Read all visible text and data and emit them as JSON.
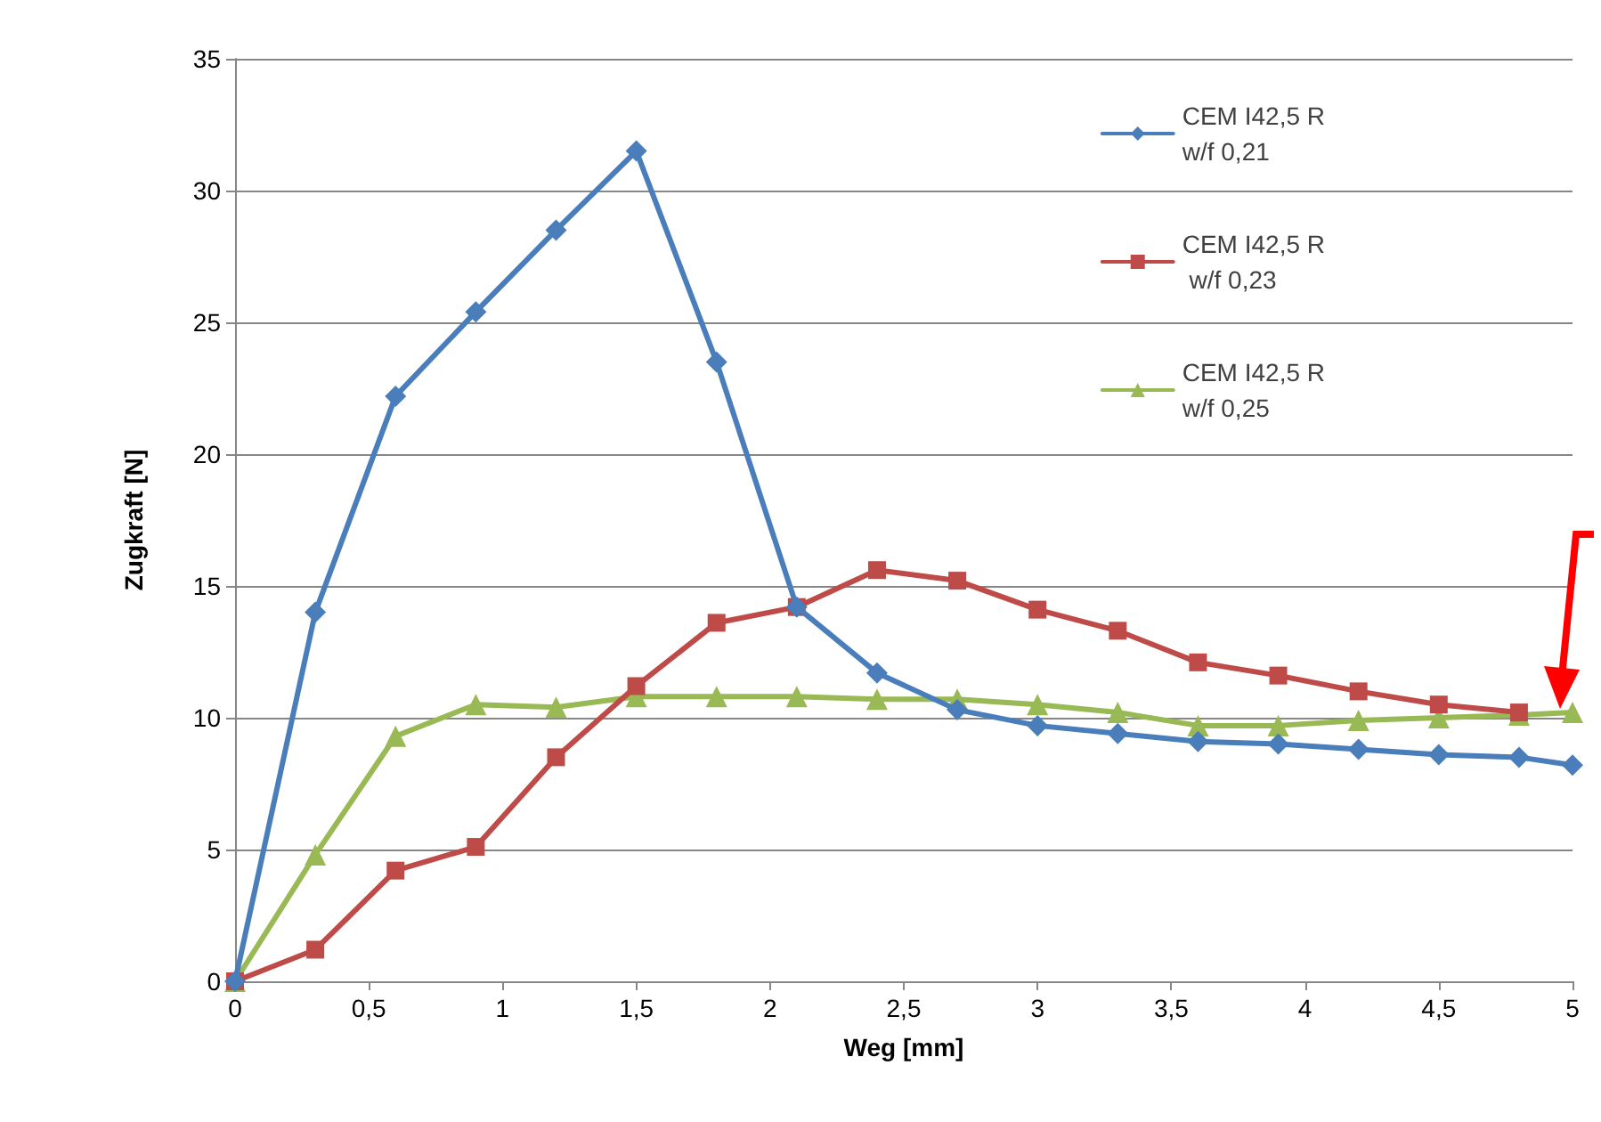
{
  "chart_data": {
    "type": "line",
    "xlabel": "Weg [mm]",
    "ylabel": "Zugkraft [N]",
    "xlim": [
      0,
      5
    ],
    "xticks": [
      0,
      {
        "value": 0.5,
        "label": "0,5"
      },
      1,
      {
        "value": 1.5,
        "label": "1,5"
      },
      2,
      {
        "value": 2.5,
        "label": "2,5"
      },
      3,
      {
        "value": 3.5,
        "label": "3,5"
      },
      4,
      {
        "value": 4.5,
        "label": "4,5"
      },
      5
    ],
    "ylim": [
      0,
      35
    ],
    "yticks": [
      0,
      5,
      10,
      15,
      20,
      25,
      30,
      35
    ],
    "grid": "y",
    "legend": "top right",
    "line_style": "solid",
    "series": [
      {
        "name": "CEM I42,5 R\nw/f 0,21",
        "color": "#4a7ebb",
        "marker": "diamond",
        "x": [
          0,
          0.3,
          0.6,
          0.9,
          1.2,
          1.5,
          1.8,
          2.1,
          2.4,
          2.7,
          3.0,
          3.3,
          3.6,
          3.9,
          4.2,
          4.5,
          4.8,
          5.0
        ],
        "values": [
          0,
          14.0,
          22.2,
          25.4,
          28.5,
          31.5,
          23.5,
          14.2,
          11.7,
          10.3,
          9.7,
          9.4,
          9.1,
          9.0,
          8.8,
          8.6,
          8.5,
          8.2
        ]
      },
      {
        "name": "CEM I42,5 R\n w/f 0,23",
        "color": "#be4b48",
        "marker": "square",
        "x": [
          0,
          0.3,
          0.6,
          0.9,
          1.2,
          1.5,
          1.8,
          2.1,
          2.4,
          2.7,
          3.0,
          3.3,
          3.6,
          3.9,
          4.2,
          4.5,
          4.8
        ],
        "values": [
          0,
          1.2,
          4.2,
          5.1,
          8.5,
          11.2,
          13.6,
          14.2,
          15.6,
          15.2,
          14.1,
          13.3,
          12.1,
          11.6,
          11.0,
          10.5,
          10.2
        ]
      },
      {
        "name": "CEM I42,5 R\nw/f 0,25",
        "color": "#98b954",
        "marker": "triangle",
        "x": [
          0,
          0.3,
          0.6,
          0.9,
          1.2,
          1.5,
          1.8,
          2.1,
          2.4,
          2.7,
          3.0,
          3.3,
          3.6,
          3.9,
          4.2,
          4.5,
          4.8,
          5.0
        ],
        "values": [
          0,
          4.8,
          9.3,
          10.5,
          10.4,
          10.8,
          10.8,
          10.8,
          10.7,
          10.7,
          10.5,
          10.2,
          9.7,
          9.7,
          9.9,
          10.0,
          10.1,
          10.2
        ]
      }
    ]
  }
}
